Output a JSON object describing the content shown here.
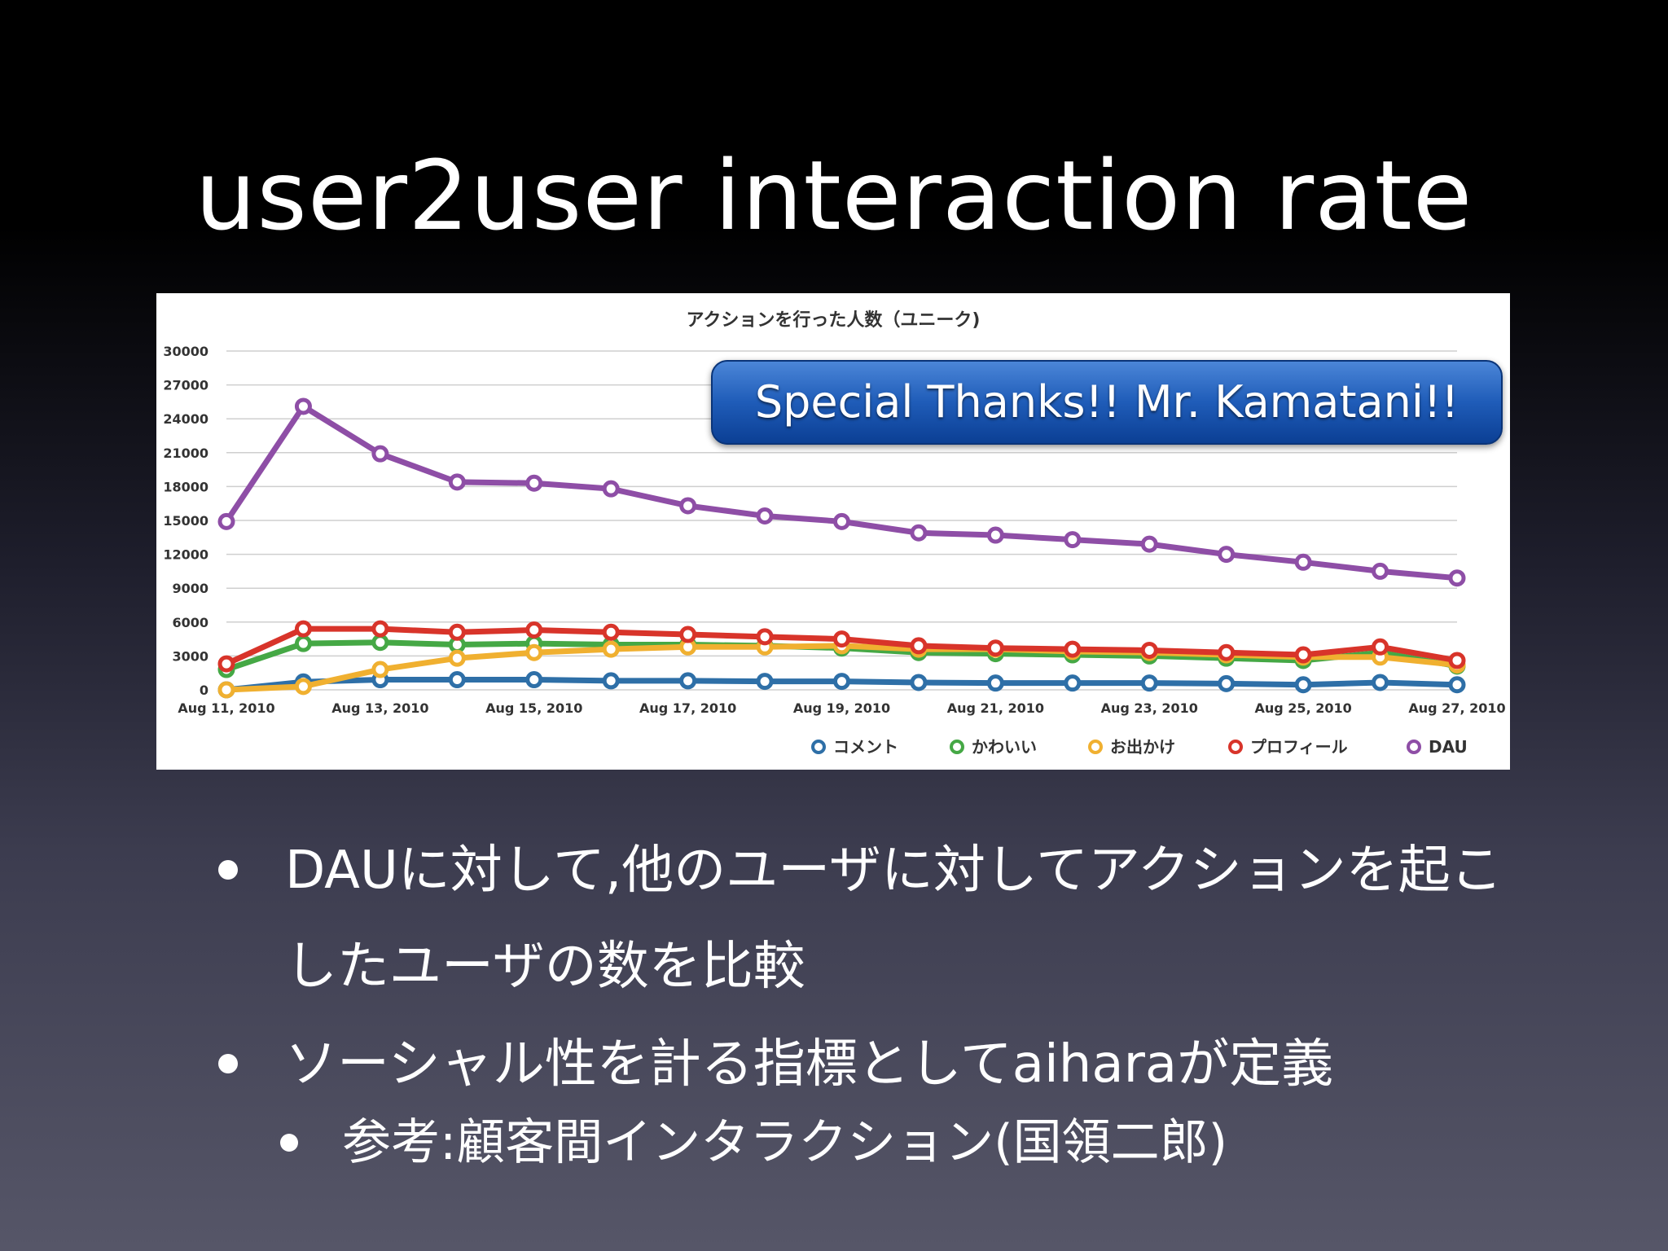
{
  "slide": {
    "title": "user2user interaction rate",
    "banner": "Special Thanks!! Mr. Kamatani!!",
    "bullets": [
      "DAUに対して,他のユーザに対してアクションを起こしたユーザの数を比較",
      "ソーシャル性を計る指標としてaiharaが定義",
      "参考:顧客間インタラクション(国領二郎)"
    ]
  },
  "chart_data": {
    "type": "line",
    "title": "アクションを行った人数（ユニーク)",
    "x": [
      "Aug 11, 2010",
      "Aug 12, 2010",
      "Aug 13, 2010",
      "Aug 14, 2010",
      "Aug 15, 2010",
      "Aug 16, 2010",
      "Aug 17, 2010",
      "Aug 18, 2010",
      "Aug 19, 2010",
      "Aug 20, 2010",
      "Aug 21, 2010",
      "Aug 22, 2010",
      "Aug 23, 2010",
      "Aug 24, 2010",
      "Aug 25, 2010",
      "Aug 26, 2010",
      "Aug 27, 2010"
    ],
    "x_tick_labels": [
      "Aug 11, 2010",
      "Aug 13, 2010",
      "Aug 15, 2010",
      "Aug 17, 2010",
      "Aug 19, 2010",
      "Aug 21, 2010",
      "Aug 23, 2010",
      "Aug 25, 2010",
      "Aug 27, 2010"
    ],
    "y_ticks": [
      0,
      3000,
      6000,
      9000,
      12000,
      15000,
      18000,
      21000,
      24000,
      27000,
      30000
    ],
    "ylim": [
      0,
      30000
    ],
    "grid": true,
    "legend_position": "bottom-right",
    "series": [
      {
        "name": "コメント",
        "color": "#2e6fa7",
        "values": [
          0,
          700,
          900,
          900,
          900,
          800,
          800,
          750,
          750,
          650,
          600,
          600,
          600,
          550,
          450,
          650,
          450
        ]
      },
      {
        "name": "かわいい",
        "color": "#45a845",
        "values": [
          1800,
          4100,
          4200,
          4000,
          4100,
          4000,
          4000,
          3900,
          3700,
          3300,
          3200,
          3100,
          3000,
          2800,
          2600,
          3300,
          2100
        ]
      },
      {
        "name": "お出かけ",
        "color": "#f0b030",
        "values": [
          0,
          300,
          1800,
          2800,
          3300,
          3600,
          3800,
          3800,
          3900,
          3600,
          3600,
          3400,
          3300,
          3100,
          2900,
          2900,
          2200
        ]
      },
      {
        "name": "プロフィール",
        "color": "#d8342a",
        "values": [
          2300,
          5400,
          5400,
          5100,
          5300,
          5100,
          4900,
          4700,
          4500,
          3900,
          3700,
          3600,
          3500,
          3300,
          3100,
          3800,
          2600
        ]
      },
      {
        "name": "DAU",
        "color": "#8e4ea6",
        "values": [
          14900,
          25100,
          20900,
          18400,
          18300,
          17800,
          16300,
          15400,
          14900,
          13900,
          13700,
          13300,
          12900,
          12000,
          11300,
          10500,
          9900
        ]
      }
    ]
  }
}
